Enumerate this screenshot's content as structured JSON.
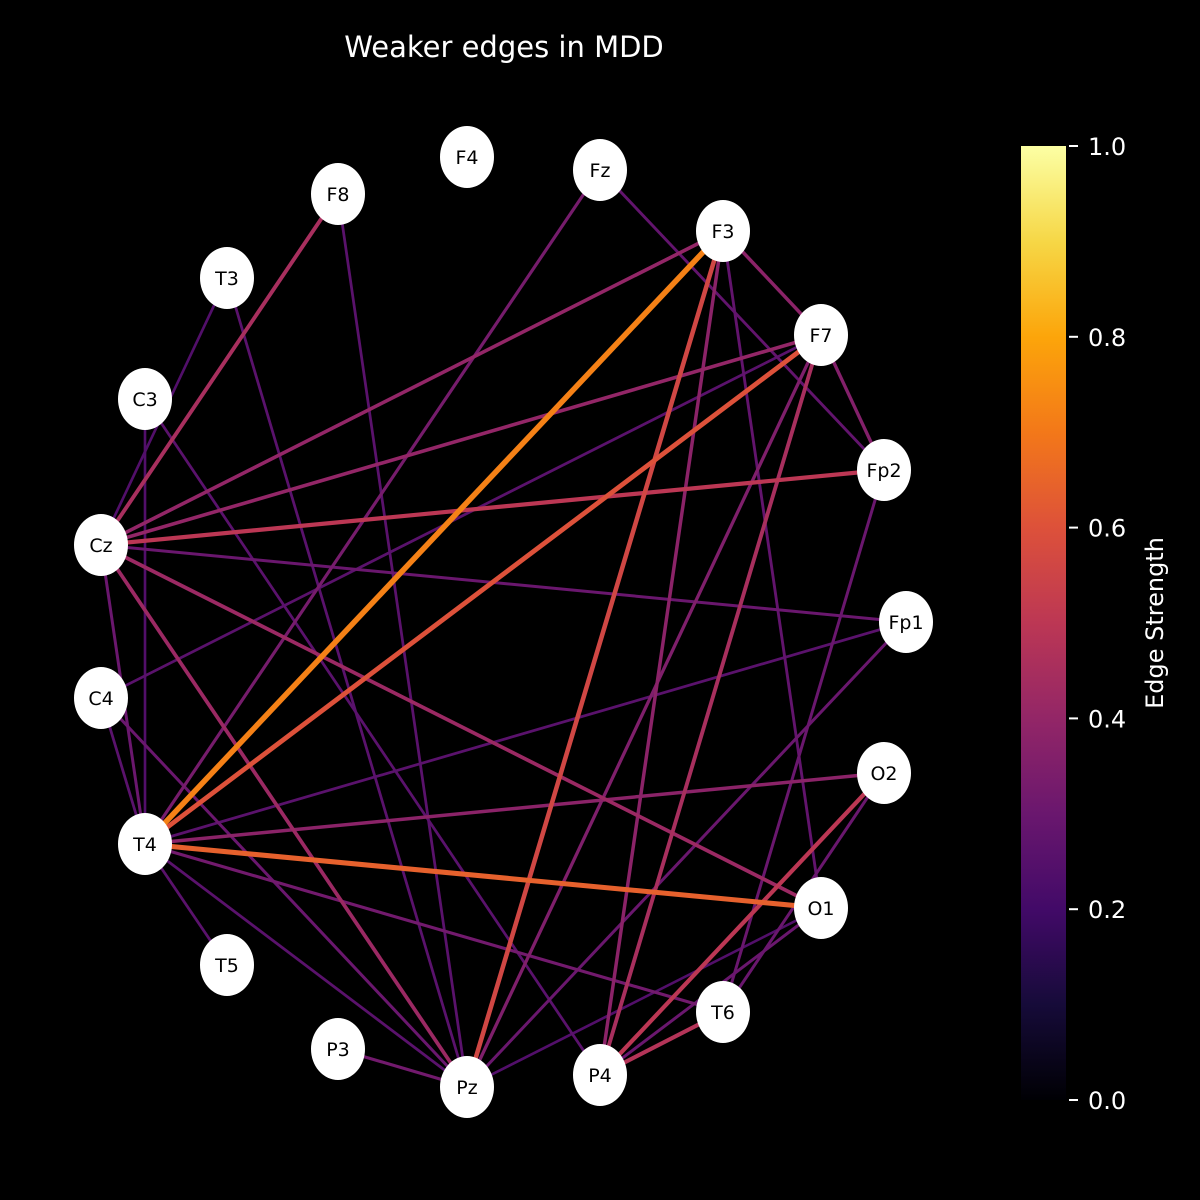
{
  "title": "Weaker edges in MDD",
  "colorbar": {
    "label": "Edge Strength",
    "colormap": "inferno",
    "range": [
      0,
      1
    ],
    "ticks": [
      {
        "value": 0.0,
        "label": "0.0"
      },
      {
        "value": 0.2,
        "label": "0.2"
      },
      {
        "value": 0.4,
        "label": "0.4"
      },
      {
        "value": 0.6,
        "label": "0.6"
      },
      {
        "value": 0.8,
        "label": "0.8"
      },
      {
        "value": 1.0,
        "label": "1.0"
      }
    ]
  },
  "colors": {
    "background": "#000000",
    "node_fill": "#ffffff",
    "node_text": "#000000",
    "text": "#ffffff"
  },
  "nodes": [
    "F4",
    "Fz",
    "F3",
    "F7",
    "Fp2",
    "Fp1",
    "O2",
    "O1",
    "T6",
    "P4",
    "Pz",
    "P3",
    "T5",
    "T4",
    "C4",
    "Cz",
    "C3",
    "T3",
    "F8"
  ],
  "edges": [
    {
      "source": "F3",
      "target": "T4",
      "strength": 0.72
    },
    {
      "source": "T4",
      "target": "O1",
      "strength": 0.64
    },
    {
      "source": "F7",
      "target": "T4",
      "strength": 0.6
    },
    {
      "source": "F3",
      "target": "Pz",
      "strength": 0.56
    },
    {
      "source": "Cz",
      "target": "Fp2",
      "strength": 0.5
    },
    {
      "source": "O2",
      "target": "P4",
      "strength": 0.5
    },
    {
      "source": "T6",
      "target": "P4",
      "strength": 0.48
    },
    {
      "source": "F8",
      "target": "Cz",
      "strength": 0.45
    },
    {
      "source": "F7",
      "target": "P4",
      "strength": 0.45
    },
    {
      "source": "Cz",
      "target": "O1",
      "strength": 0.42
    },
    {
      "source": "Cz",
      "target": "Pz",
      "strength": 0.42
    },
    {
      "source": "F3",
      "target": "Cz",
      "strength": 0.4
    },
    {
      "source": "F7",
      "target": "Cz",
      "strength": 0.4
    },
    {
      "source": "F3",
      "target": "F7",
      "strength": 0.38
    },
    {
      "source": "F3",
      "target": "P4",
      "strength": 0.38
    },
    {
      "source": "T4",
      "target": "O2",
      "strength": 0.38
    },
    {
      "source": "F7",
      "target": "Fp2",
      "strength": 0.36
    },
    {
      "source": "F7",
      "target": "Pz",
      "strength": 0.35
    },
    {
      "source": "Fz",
      "target": "T4",
      "strength": 0.33
    },
    {
      "source": "T4",
      "target": "T6",
      "strength": 0.32
    },
    {
      "source": "Cz",
      "target": "Fp1",
      "strength": 0.3
    },
    {
      "source": "P3",
      "target": "Pz",
      "strength": 0.32
    },
    {
      "source": "C4",
      "target": "Pz",
      "strength": 0.3
    },
    {
      "source": "Fp1",
      "target": "Pz",
      "strength": 0.3
    },
    {
      "source": "O2",
      "target": "T6",
      "strength": 0.3
    },
    {
      "source": "O1",
      "target": "P4",
      "strength": 0.3
    },
    {
      "source": "Fz",
      "target": "Fp2",
      "strength": 0.28
    },
    {
      "source": "F3",
      "target": "O1",
      "strength": 0.28
    },
    {
      "source": "Fp2",
      "target": "T6",
      "strength": 0.3
    },
    {
      "source": "Cz",
      "target": "T4",
      "strength": 0.3
    },
    {
      "source": "F8",
      "target": "Pz",
      "strength": 0.26
    },
    {
      "source": "T3",
      "target": "Pz",
      "strength": 0.26
    },
    {
      "source": "C3",
      "target": "P4",
      "strength": 0.26
    },
    {
      "source": "F7",
      "target": "C4",
      "strength": 0.26
    },
    {
      "source": "Fp1",
      "target": "T4",
      "strength": 0.26
    },
    {
      "source": "T4",
      "target": "Pz",
      "strength": 0.26
    },
    {
      "source": "C4",
      "target": "T4",
      "strength": 0.26
    },
    {
      "source": "T4",
      "target": "T5",
      "strength": 0.26
    },
    {
      "source": "C3",
      "target": "T4",
      "strength": 0.24
    },
    {
      "source": "T3",
      "target": "Cz",
      "strength": 0.24
    },
    {
      "source": "O1",
      "target": "Pz",
      "strength": 0.24
    }
  ]
}
